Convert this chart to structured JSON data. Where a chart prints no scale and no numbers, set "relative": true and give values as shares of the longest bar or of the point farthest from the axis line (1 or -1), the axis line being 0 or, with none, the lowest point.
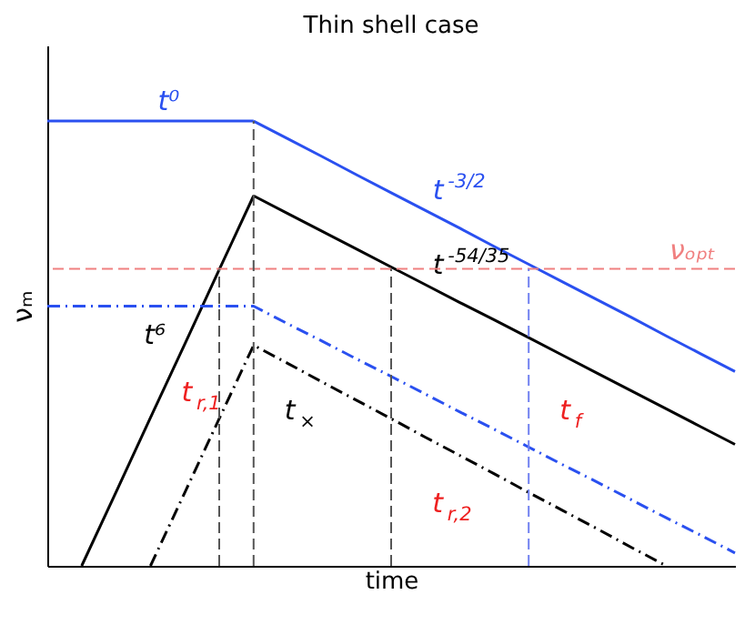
{
  "chart_data": {
    "type": "line",
    "title": "Thin shell case",
    "xlabel": "time",
    "ylabel": "νₘ",
    "relative": true,
    "tick_labels": false,
    "grid": false,
    "categories": [
      null,
      null,
      null,
      null,
      null,
      null,
      null,
      null,
      null,
      null,
      null,
      null,
      null,
      null,
      null,
      null,
      null,
      null,
      null,
      null,
      null
    ],
    "series": [
      {
        "name": "t⁰",
        "color": "#2a50f0",
        "line_style": "solid",
        "values": [
          1,
          1,
          1,
          1,
          1,
          1,
          1,
          null,
          null,
          null,
          null,
          null,
          null,
          null,
          null,
          null,
          null,
          null,
          null,
          null,
          null
        ]
      },
      {
        "name": "t$^{-3/2}$",
        "color": "#2a50f0",
        "line_style": "solid",
        "values": [
          null,
          null,
          null,
          null,
          null,
          null,
          1,
          0.96,
          0.92,
          0.879,
          0.839,
          0.799,
          0.759,
          0.718,
          0.678,
          0.638,
          0.598,
          0.558,
          0.517,
          0.477,
          0.437
        ]
      },
      {
        "name": "t⁶",
        "color": "#000000",
        "line_style": "solid",
        "values": [
          null,
          0,
          0.166,
          0.333,
          0.499,
          0.666,
          0.832,
          null,
          null,
          null,
          null,
          null,
          null,
          null,
          null,
          null,
          null,
          null,
          null,
          null,
          null
        ]
      },
      {
        "name": "t$^{-54/35}$",
        "color": "#000000",
        "line_style": "solid",
        "values": [
          null,
          null,
          null,
          null,
          null,
          null,
          0.832,
          0.792,
          0.752,
          0.712,
          0.672,
          0.632,
          0.592,
          0.553,
          0.513,
          0.473,
          0.433,
          0.393,
          0.353,
          0.313,
          0.273
        ]
      },
      {
        "color": "#2a50f0",
        "line_style": "dashdot",
        "values": [
          0.584,
          0.584,
          0.584,
          0.584,
          0.584,
          0.584,
          0.584,
          0.544,
          0.505,
          0.465,
          0.426,
          0.386,
          0.346,
          0.307,
          0.267,
          0.227,
          0.188,
          0.148,
          0.108,
          0.069,
          0.029
        ]
      },
      {
        "color": "#000000",
        "line_style": "dashdot",
        "values": [
          null,
          null,
          null,
          0,
          0.165,
          0.331,
          0.496,
          0.455,
          0.413,
          0.372,
          0.331,
          0.289,
          0.248,
          0.207,
          0.165,
          0.124,
          0.083,
          0.041,
          0,
          null,
          null
        ]
      }
    ],
    "ref_lines": [
      {
        "axis": "y",
        "value": 0.668,
        "label": "νₒₚₜ",
        "color": "#f08080",
        "line_style": "dashed"
      }
    ],
    "annotations": [
      "t$_{r,1}$",
      "t$_{×}$",
      "t$_{r,2}$",
      "t$_{f}$"
    ]
  }
}
